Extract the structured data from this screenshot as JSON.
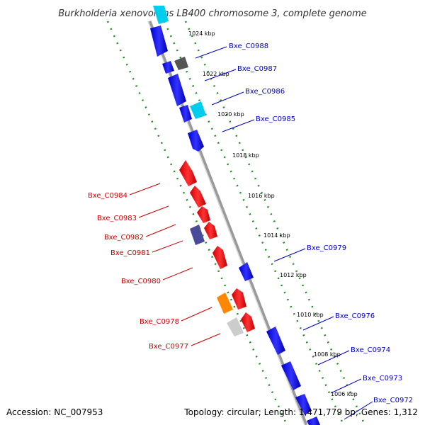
{
  "title": "Burkholderia xenovorans LB400 chromosome 3, complete genome",
  "accession": "Accession: NC_007953",
  "topology": "Topology: circular; Length: 1,471,779 bp; Genes: 1,312",
  "colors": {
    "forward_gene": "#1a1aff",
    "reverse_gene": "#ee1111",
    "forward_label": "#0000cc",
    "reverse_label": "#cc0000",
    "backbone": "#888888",
    "dotted_track": "#228b22"
  },
  "ticks": [
    "1024 kbp",
    "1022 kbp",
    "1020 kbp",
    "1018 kbp",
    "1016 kbp",
    "1014 kbp",
    "1012 kbp",
    "1010 kbp",
    "1008 kbp",
    "1006 kbp"
  ],
  "forward_labels": [
    "Bxe_C0988",
    "Bxe_C0987",
    "Bxe_C0986",
    "Bxe_C0985",
    "Bxe_C0979",
    "Bxe_C0976",
    "Bxe_C0974",
    "Bxe_C0973",
    "Bxe_C0972"
  ],
  "reverse_labels": [
    "Bxe_C0984",
    "Bxe_C0983",
    "Bxe_C0982",
    "Bxe_C0981",
    "Bxe_C0980",
    "Bxe_C0978",
    "Bxe_C0977"
  ]
}
